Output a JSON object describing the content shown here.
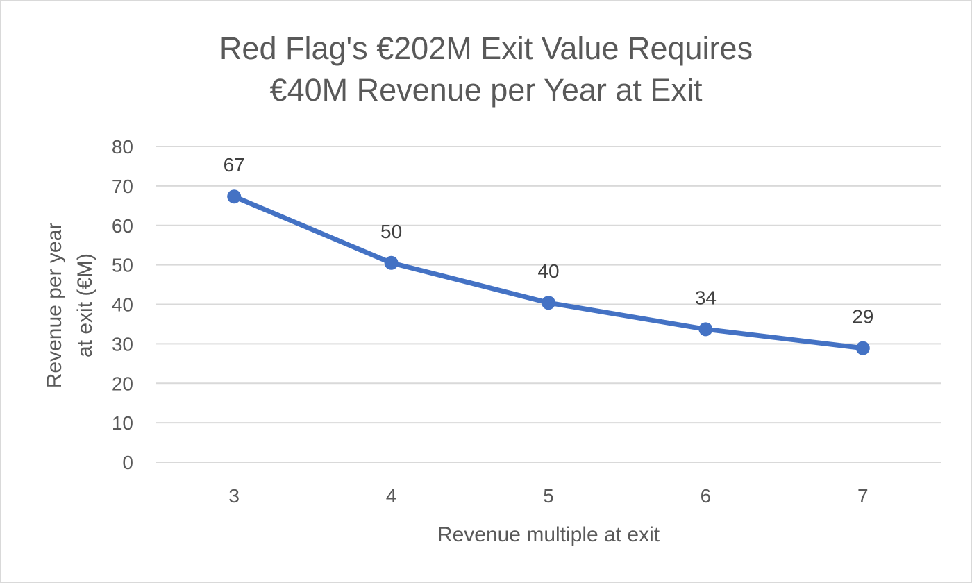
{
  "chart_data": {
    "type": "line",
    "title_lines": [
      "Red Flag's €202M Exit Value Requires",
      "€40M Revenue per Year at Exit"
    ],
    "xlabel": "Revenue multiple at exit",
    "ylabel_lines": [
      "Revenue per year",
      "at exit (€M)"
    ],
    "categories": [
      "3",
      "4",
      "5",
      "6",
      "7"
    ],
    "series": [
      {
        "values": [
          67.3,
          50.5,
          40.4,
          33.7,
          28.9
        ],
        "data_labels": [
          "67",
          "50",
          "40",
          "34",
          "29"
        ],
        "color": "#4472c4"
      }
    ],
    "ylim": [
      0,
      80
    ],
    "yticks": [
      "0",
      "10",
      "20",
      "30",
      "40",
      "50",
      "60",
      "70",
      "80"
    ],
    "grid": true,
    "legend": "none"
  }
}
